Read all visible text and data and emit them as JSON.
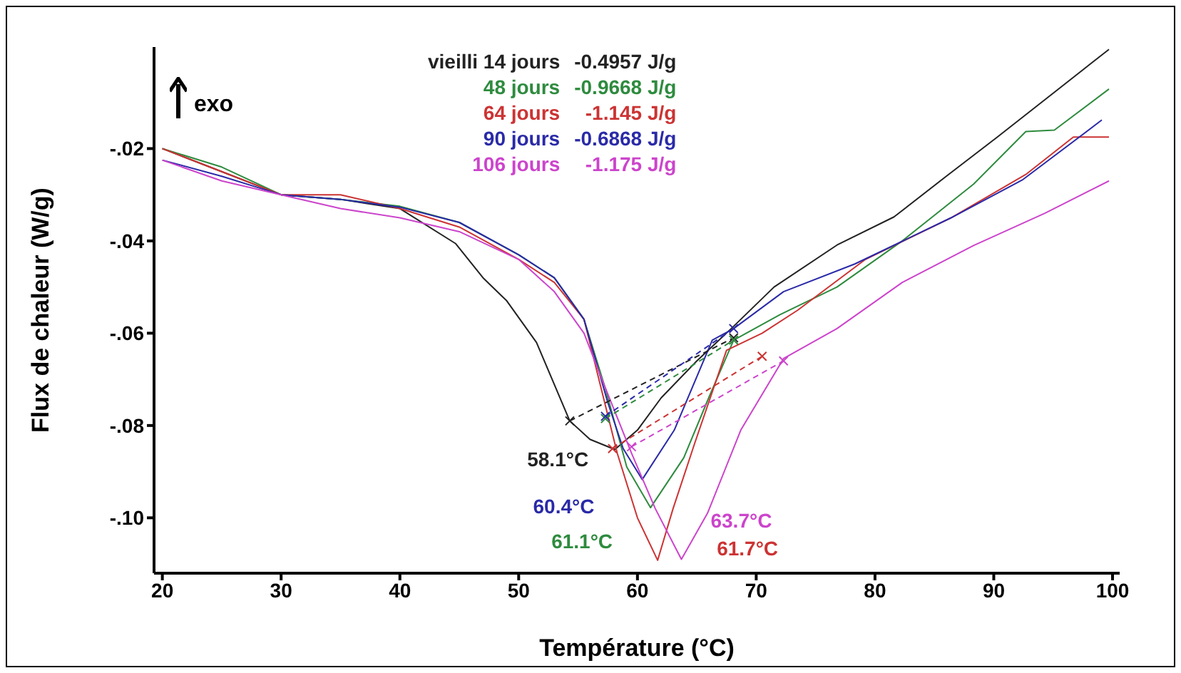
{
  "chart_data": {
    "type": "line",
    "xlabel": "Température (°C)",
    "ylabel": "Flux de chaleur (W/g)",
    "xlim": [
      19.3,
      100.6
    ],
    "ylim": [
      -0.112,
      0.002
    ],
    "xticks": [
      20,
      30,
      40,
      50,
      60,
      70,
      80,
      90,
      100
    ],
    "yticks": [
      {
        "value": -0.1,
        "label": "-.10"
      },
      {
        "value": -0.08,
        "label": "-.08"
      },
      {
        "value": -0.06,
        "label": "-.06"
      },
      {
        "value": -0.04,
        "label": "-.04"
      },
      {
        "value": -0.02,
        "label": "-.02"
      }
    ],
    "grid": false,
    "legend": "top",
    "line_style": "solid",
    "series": [
      {
        "name": "vieilli 14 jours",
        "color": "#222222",
        "x": [
          20,
          25,
          30,
          35,
          40,
          44.7,
          47,
          49,
          51.5,
          54.3,
          56,
          58.1,
          60,
          62,
          65,
          67.9,
          71.5,
          76.8,
          81.6,
          86,
          90.3,
          95,
          99.7
        ],
        "values": [
          -0.02,
          -0.025,
          -0.03,
          -0.031,
          -0.033,
          -0.0406,
          -0.048,
          -0.053,
          -0.062,
          -0.079,
          -0.083,
          -0.0852,
          -0.081,
          -0.074,
          -0.066,
          -0.059,
          -0.05,
          -0.0409,
          -0.0348,
          -0.026,
          -0.0175,
          -0.008,
          0.0015
        ]
      },
      {
        "name": "48 jours",
        "color": "#2e8b3e",
        "x": [
          20,
          25,
          30,
          35,
          40,
          45,
          50,
          53,
          55.5,
          57.3,
          59.1,
          61.1,
          63.9,
          66,
          68.1,
          72,
          76.8,
          82.3,
          88.3,
          92.7,
          95.1,
          99.7
        ],
        "values": [
          -0.02,
          -0.024,
          -0.03,
          -0.031,
          -0.0325,
          -0.036,
          -0.043,
          -0.048,
          -0.057,
          -0.072,
          -0.089,
          -0.0978,
          -0.087,
          -0.074,
          -0.0615,
          -0.056,
          -0.05,
          -0.04,
          -0.0277,
          -0.0163,
          -0.016,
          -0.0071
        ]
      },
      {
        "name": "64 jours",
        "color": "#cc3333",
        "x": [
          20,
          25,
          30,
          35,
          40,
          45,
          50,
          53,
          55.5,
          58.3,
          60,
          61.7,
          63,
          64.8,
          67.5,
          70.5,
          73.5,
          79.2,
          86.4,
          92.7,
          96.7,
          99.7
        ],
        "values": [
          -0.02,
          -0.025,
          -0.03,
          -0.03,
          -0.033,
          -0.037,
          -0.044,
          -0.049,
          -0.057,
          -0.086,
          -0.1,
          -0.1092,
          -0.098,
          -0.084,
          -0.0637,
          -0.06,
          -0.055,
          -0.044,
          -0.035,
          -0.0256,
          -0.0175,
          -0.0175
        ]
      },
      {
        "name": "90 jours",
        "color": "#2a2aa8",
        "x": [
          20,
          25,
          30,
          35,
          40,
          45,
          50,
          53,
          55.5,
          57.5,
          58.8,
          60.4,
          63.1,
          66.3,
          68.1,
          72.3,
          78.3,
          86.4,
          92.4,
          99.1
        ],
        "values": [
          -0.0225,
          -0.026,
          -0.03,
          -0.031,
          -0.0327,
          -0.036,
          -0.043,
          -0.048,
          -0.057,
          -0.075,
          -0.085,
          -0.0917,
          -0.081,
          -0.0615,
          -0.059,
          -0.051,
          -0.045,
          -0.035,
          -0.0268,
          -0.0138
        ]
      },
      {
        "name": "106 jours",
        "color": "#cc44cc",
        "x": [
          20,
          25,
          30,
          35,
          40,
          45,
          50,
          53,
          55.5,
          56.7,
          59.5,
          61.5,
          63.7,
          65.9,
          68.7,
          72.3,
          76.8,
          82.3,
          88.3,
          94.3,
          99.7
        ],
        "values": [
          -0.0225,
          -0.027,
          -0.03,
          -0.033,
          -0.035,
          -0.038,
          -0.044,
          -0.051,
          -0.06,
          -0.068,
          -0.086,
          -0.098,
          -0.109,
          -0.099,
          -0.081,
          -0.0655,
          -0.059,
          -0.049,
          -0.041,
          -0.034,
          -0.027
        ]
      },
      {
        "color": "#222222",
        "line_style": "dashed",
        "marker": "cross",
        "x": [
          54.3,
          68.1
        ],
        "values": [
          -0.079,
          -0.061
        ]
      },
      {
        "color": "#2e8b3e",
        "line_style": "dashed",
        "marker": "cross",
        "x": [
          57.3,
          68.1
        ],
        "values": [
          -0.0785,
          -0.0615
        ]
      },
      {
        "color": "#cc3333",
        "line_style": "dashed",
        "marker": "cross",
        "x": [
          57.9,
          70.5
        ],
        "values": [
          -0.085,
          -0.065
        ]
      },
      {
        "color": "#2a2aa8",
        "line_style": "dashed",
        "marker": "cross",
        "x": [
          57.3,
          68.1
        ],
        "values": [
          -0.078,
          -0.059
        ]
      },
      {
        "color": "#cc44cc",
        "line_style": "dashed",
        "marker": "cross",
        "x": [
          59.5,
          72.3
        ],
        "values": [
          -0.0846,
          -0.066
        ]
      }
    ],
    "annotations": [
      "exo",
      "-0.4957 J/g",
      "-0.9668 J/g",
      "-1.145 J/g",
      "-0.6868 J/g",
      "-1.175 J/g",
      {
        "text": "58.1°C",
        "x": 58.1,
        "y": -0.0852
      },
      {
        "text": "61.1°C",
        "x": 61.1,
        "y": -0.0978
      },
      {
        "text": "61.7°C",
        "x": 61.7,
        "y": -0.1092
      },
      {
        "text": "60.4°C",
        "x": 60.4,
        "y": -0.0917
      },
      {
        "text": "63.7°C",
        "x": 63.7,
        "y": -0.109
      }
    ]
  }
}
